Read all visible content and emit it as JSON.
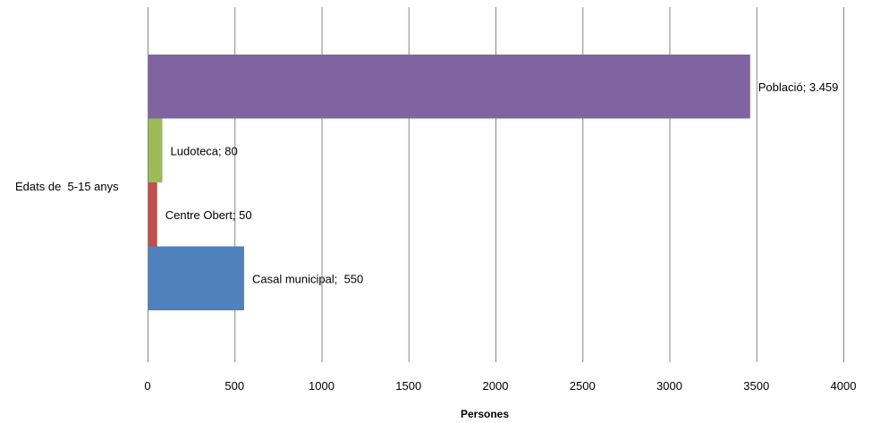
{
  "chart_data": {
    "type": "bar",
    "orientation": "horizontal",
    "title": "",
    "xlabel": "Persones",
    "ylabel": "",
    "xlim": [
      0,
      4000
    ],
    "x_ticks": [
      0,
      500,
      1000,
      1500,
      2000,
      2500,
      3000,
      3500,
      4000
    ],
    "grid": "vertical",
    "legend": "none",
    "categories": [
      "Edats de  5-15 anys"
    ],
    "series": [
      {
        "name": "Casal municipal",
        "values": [
          550
        ],
        "color": "#4F81BD",
        "data_label": "Casal municipal;  550"
      },
      {
        "name": "Centre Obert",
        "values": [
          50
        ],
        "color": "#C0504D",
        "data_label": "Centre Obert; 50"
      },
      {
        "name": "Ludoteca",
        "values": [
          80
        ],
        "color": "#9BBB59",
        "data_label": "Ludoteca; 80"
      },
      {
        "name": "Població",
        "values": [
          3459
        ],
        "color": "#8064A2",
        "data_label": "Població; 3.459"
      }
    ]
  }
}
